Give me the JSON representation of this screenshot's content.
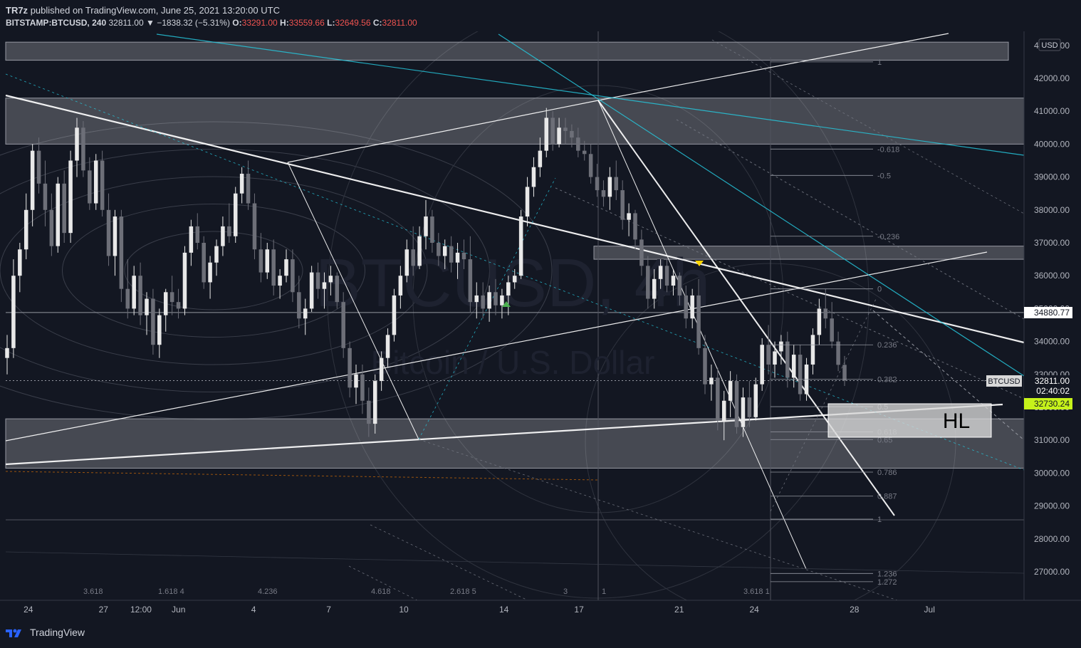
{
  "header": {
    "author": "TR7z",
    "published_text": "published on TradingView.com, June 25, 2021 13:20:00 UTC",
    "symbol": "BITSTAMP:BTCUSD, 240",
    "last": "32811.00",
    "change": "▼ −1838.32 (−5.31%)",
    "o_label": "O:",
    "o": "33291.00",
    "h_label": "H:",
    "h": "33559.66",
    "l_label": "L:",
    "l": "32649.56",
    "c_label": "C:",
    "c": "32811.00"
  },
  "watermark": {
    "symbol": "BTCUSD, 4h",
    "name": "Bitcoin / U.S. Dollar"
  },
  "currency_badge": "USD",
  "annotation": "HL",
  "price_tags": {
    "level": "34880.77",
    "symbol": "BTCUSD",
    "price": "32811.00",
    "countdown": "02:40:02",
    "green": "32730.24"
  },
  "footer": {
    "brand": "TradingView"
  },
  "colors": {
    "background": "#131722",
    "up": "#e8e8e8",
    "down": "#6d6f78",
    "cyan": "#26c6da",
    "green_tag": "#c6f21a",
    "zone": "#ffffff"
  },
  "chart_data": {
    "type": "candlestick",
    "symbol": "BTCUSD",
    "interval": "240",
    "y_ticks": [
      27000,
      28000,
      29000,
      30000,
      31000,
      32000,
      33000,
      34000,
      35000,
      36000,
      37000,
      38000,
      39000,
      40000,
      41000,
      42000,
      43000
    ],
    "y_tick_labels": [
      "27000.00",
      "28000.00",
      "29000.00",
      "30000.00",
      "31000.00",
      "32000.00",
      "33000.00",
      "34000.00",
      "35000.00",
      "36000.00",
      "37000.00",
      "38000.00",
      "39000.00",
      "40000.00",
      "41000.00",
      "42000.00",
      "43000.00"
    ],
    "x_ticks": [
      {
        "label": "24",
        "d": -8
      },
      {
        "label": "27",
        "d": -5
      },
      {
        "label": "12:00",
        "d": -3.5
      },
      {
        "label": "Jun",
        "d": -2
      },
      {
        "label": "4",
        "d": 1
      },
      {
        "label": "7",
        "d": 4
      },
      {
        "label": "10",
        "d": 7
      },
      {
        "label": "14",
        "d": 11
      },
      {
        "label": "17",
        "d": 14
      },
      {
        "label": "21",
        "d": 18
      },
      {
        "label": "24",
        "d": 21
      },
      {
        "label": "28",
        "d": 25
      },
      {
        "label": "Jul",
        "d": 28
      }
    ],
    "zones": [
      [
        43100,
        42550
      ],
      [
        41400,
        40000
      ],
      [
        36900,
        36500
      ],
      [
        31650,
        30150
      ]
    ],
    "fib_levels": [
      {
        "label": "1",
        "price": 42500
      },
      {
        "label": "-0.618",
        "price": 39850
      },
      {
        "label": "-0.5",
        "price": 39050
      },
      {
        "label": "-0.236",
        "price": 37200
      },
      {
        "label": "0",
        "price": 35600
      },
      {
        "label": "0.236",
        "price": 33900
      },
      {
        "label": "0.382",
        "price": 32850
      },
      {
        "label": "0.5",
        "price": 32020
      },
      {
        "label": "0.618",
        "price": 31250
      },
      {
        "label": "0.65",
        "price": 31020
      },
      {
        "label": "0.786",
        "price": 30030
      },
      {
        "label": "0.887",
        "price": 29300
      },
      {
        "label": "1",
        "price": 28600
      },
      {
        "label": "1.236",
        "price": 26950
      },
      {
        "label": "1.272",
        "price": 26700
      }
    ],
    "bottom_labels": [
      "3.618",
      "1.618 4",
      "4.236",
      "4.618",
      "2.618 5",
      "3",
      "1",
      "3.618 1"
    ],
    "candles": [
      [
        33500,
        34200,
        33000,
        33800
      ],
      [
        33800,
        36500,
        33500,
        36000
      ],
      [
        36000,
        37000,
        35500,
        36800
      ],
      [
        36800,
        38500,
        36500,
        38000
      ],
      [
        38000,
        40000,
        37500,
        39800
      ],
      [
        39800,
        40200,
        38500,
        38800
      ],
      [
        38800,
        39500,
        37500,
        38000
      ],
      [
        38000,
        38500,
        36600,
        36900
      ],
      [
        36900,
        39000,
        36700,
        38800
      ],
      [
        38800,
        39200,
        37000,
        37300
      ],
      [
        37300,
        39800,
        37000,
        39500
      ],
      [
        39500,
        40800,
        39000,
        40500
      ],
      [
        40500,
        40700,
        39000,
        39200
      ],
      [
        39200,
        39600,
        38000,
        38200
      ],
      [
        38200,
        39700,
        38000,
        39500
      ],
      [
        39500,
        39800,
        37800,
        38000
      ],
      [
        38000,
        38500,
        36300,
        36600
      ],
      [
        36600,
        38000,
        36000,
        37800
      ],
      [
        37800,
        38000,
        35200,
        35600
      ],
      [
        35600,
        36500,
        34700,
        35000
      ],
      [
        35000,
        36300,
        34800,
        36000
      ],
      [
        36000,
        36400,
        34500,
        34800
      ],
      [
        34800,
        35500,
        34200,
        35300
      ],
      [
        35300,
        35600,
        33600,
        33900
      ],
      [
        33900,
        35000,
        33500,
        34800
      ],
      [
        34800,
        35600,
        34300,
        35500
      ],
      [
        35500,
        36000,
        34800,
        35200
      ],
      [
        35200,
        35600,
        34700,
        35000
      ],
      [
        35000,
        36900,
        34800,
        36700
      ],
      [
        36700,
        37700,
        36300,
        37500
      ],
      [
        37500,
        37900,
        36800,
        37000
      ],
      [
        37000,
        37200,
        35600,
        35800
      ],
      [
        35800,
        36600,
        35300,
        36400
      ],
      [
        36400,
        37100,
        36000,
        36900
      ],
      [
        36900,
        37800,
        36600,
        37500
      ],
      [
        37500,
        38200,
        37000,
        37200
      ],
      [
        37200,
        38700,
        37000,
        38500
      ],
      [
        38500,
        39300,
        38200,
        39100
      ],
      [
        39100,
        39500,
        38000,
        38200
      ],
      [
        38200,
        38500,
        36500,
        36800
      ],
      [
        36800,
        37300,
        35800,
        36100
      ],
      [
        36100,
        37000,
        35900,
        36800
      ],
      [
        36800,
        37100,
        35400,
        35700
      ],
      [
        35700,
        36200,
        35300,
        36000
      ],
      [
        36000,
        36800,
        35800,
        36500
      ],
      [
        36500,
        36800,
        35200,
        35500
      ],
      [
        35500,
        36000,
        34400,
        34700
      ],
      [
        34700,
        35300,
        34200,
        35000
      ],
      [
        35000,
        36300,
        34900,
        36100
      ],
      [
        36100,
        36400,
        35300,
        35600
      ],
      [
        35600,
        36100,
        35000,
        35800
      ],
      [
        35800,
        36300,
        35400,
        36000
      ],
      [
        36000,
        36100,
        35000,
        35200
      ],
      [
        35200,
        35500,
        33500,
        33800
      ],
      [
        33800,
        34000,
        32300,
        32600
      ],
      [
        32600,
        33300,
        32100,
        33000
      ],
      [
        33000,
        33300,
        31800,
        32200
      ],
      [
        32200,
        32600,
        31100,
        31500
      ],
      [
        31500,
        33000,
        31200,
        32800
      ],
      [
        32800,
        33700,
        32500,
        33500
      ],
      [
        33500,
        34400,
        33200,
        34200
      ],
      [
        34200,
        35600,
        34000,
        35400
      ],
      [
        35400,
        36300,
        35000,
        36000
      ],
      [
        36000,
        37100,
        35800,
        36800
      ],
      [
        36800,
        37500,
        36000,
        36300
      ],
      [
        36300,
        37500,
        36200,
        37200
      ],
      [
        37200,
        38300,
        36800,
        37800
      ],
      [
        37800,
        38000,
        36700,
        37000
      ],
      [
        37000,
        37300,
        36300,
        36600
      ],
      [
        36600,
        37100,
        36200,
        36900
      ],
      [
        36900,
        37200,
        36100,
        36400
      ],
      [
        36400,
        37000,
        35900,
        36700
      ],
      [
        36700,
        37100,
        36200,
        36500
      ],
      [
        36500,
        37200,
        34900,
        35200
      ],
      [
        35200,
        35800,
        34700,
        35400
      ],
      [
        35400,
        35800,
        34700,
        35000
      ],
      [
        35000,
        35700,
        34600,
        35500
      ],
      [
        35500,
        35900,
        34800,
        35100
      ],
      [
        35100,
        35600,
        34700,
        35400
      ],
      [
        35400,
        36000,
        34800,
        35800
      ],
      [
        35800,
        36200,
        35600,
        36000
      ],
      [
        36000,
        38000,
        35900,
        37800
      ],
      [
        37800,
        39000,
        37500,
        38700
      ],
      [
        38700,
        39600,
        38400,
        39300
      ],
      [
        39300,
        40200,
        39000,
        39800
      ],
      [
        39800,
        41100,
        39600,
        40800
      ],
      [
        40800,
        41000,
        39800,
        40000
      ],
      [
        40000,
        40800,
        39900,
        40500
      ],
      [
        40500,
        40800,
        40000,
        40400
      ],
      [
        40400,
        40600,
        39900,
        40200
      ],
      [
        40200,
        40500,
        39600,
        39800
      ],
      [
        39800,
        40100,
        39500,
        39700
      ],
      [
        39700,
        40000,
        38800,
        39000
      ],
      [
        39000,
        39400,
        38400,
        38600
      ],
      [
        38600,
        38900,
        38100,
        38400
      ],
      [
        38400,
        39300,
        38000,
        39000
      ],
      [
        39000,
        39500,
        38300,
        38600
      ],
      [
        38600,
        38900,
        37400,
        37700
      ],
      [
        37700,
        38200,
        37200,
        37900
      ],
      [
        37900,
        38000,
        36800,
        37100
      ],
      [
        37100,
        37400,
        36000,
        36300
      ],
      [
        36300,
        36600,
        35000,
        35300
      ],
      [
        35300,
        36200,
        35000,
        35900
      ],
      [
        35900,
        36500,
        35600,
        36300
      ],
      [
        36300,
        36500,
        35500,
        35700
      ],
      [
        35700,
        36200,
        35400,
        36000
      ],
      [
        36000,
        36100,
        35100,
        35400
      ],
      [
        35400,
        35700,
        34400,
        34700
      ],
      [
        34700,
        35600,
        34400,
        35400
      ],
      [
        35400,
        35900,
        33600,
        33800
      ],
      [
        33800,
        34200,
        32400,
        32700
      ],
      [
        32700,
        33300,
        32200,
        32900
      ],
      [
        32900,
        33200,
        31300,
        31600
      ],
      [
        31600,
        32500,
        31000,
        32200
      ],
      [
        32200,
        33100,
        31700,
        32800
      ],
      [
        32800,
        33000,
        31200,
        31400
      ],
      [
        31400,
        32600,
        31100,
        32300
      ],
      [
        32300,
        32800,
        31400,
        31700
      ],
      [
        31700,
        32900,
        31600,
        32700
      ],
      [
        32700,
        34100,
        32500,
        33900
      ],
      [
        33900,
        34500,
        33000,
        33300
      ],
      [
        33300,
        34000,
        32900,
        33700
      ],
      [
        33700,
        34200,
        33300,
        34000
      ],
      [
        34000,
        34300,
        32600,
        32900
      ],
      [
        32900,
        33900,
        32600,
        33600
      ],
      [
        33600,
        33900,
        32200,
        32400
      ],
      [
        32400,
        33500,
        32200,
        33300
      ],
      [
        33300,
        34400,
        33000,
        34200
      ],
      [
        34200,
        35300,
        33900,
        35000
      ],
      [
        35000,
        35600,
        34400,
        34700
      ],
      [
        34700,
        35200,
        33800,
        34000
      ],
      [
        34000,
        34300,
        33100,
        33291
      ],
      [
        33291,
        33560,
        32650,
        32811
      ]
    ],
    "last_price": 32811.0,
    "levels": {
      "resistance_tag": 34880.77,
      "green_tag": 32730.24
    }
  }
}
